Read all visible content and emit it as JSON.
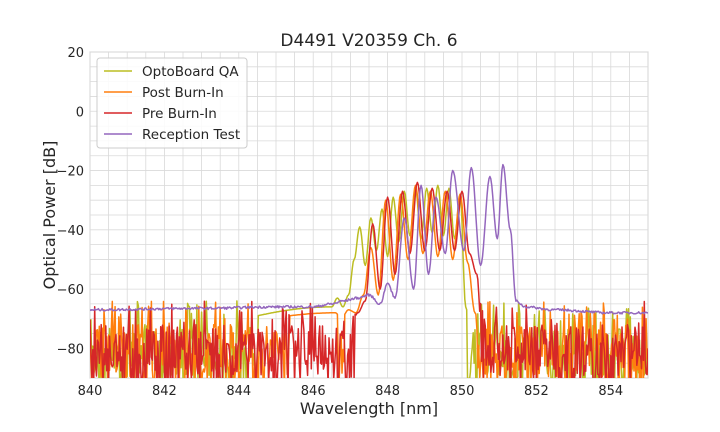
{
  "chart_data": {
    "type": "line",
    "title": "D4491 V20359 Ch. 6",
    "xlabel": "Wavelength [nm]",
    "ylabel": "Optical Power [dB]",
    "xlim": [
      840,
      855
    ],
    "ylim": [
      -90,
      20
    ],
    "xticks": [
      840,
      842,
      844,
      846,
      848,
      850,
      852,
      854
    ],
    "yticks": [
      20,
      0,
      -20,
      -40,
      -60,
      -80
    ],
    "xtick_labels": [
      "840",
      "842",
      "844",
      "846",
      "848",
      "850",
      "852",
      "854"
    ],
    "ytick_labels": [
      "20",
      "0",
      "−20",
      "−40",
      "−60",
      "−80"
    ],
    "grid": true,
    "legend_position": "top-left",
    "series": [
      {
        "name": "OptoBoard QA",
        "color": "#bcbd22",
        "x": [
          840.0,
          846.5,
          846.65,
          846.8,
          846.95,
          847.1,
          847.25,
          847.4,
          847.55,
          847.7,
          847.85,
          848.0,
          848.15,
          848.3,
          848.45,
          848.6,
          848.75,
          848.9,
          849.05,
          849.2,
          849.35,
          849.5,
          849.65,
          849.8,
          849.95,
          850.1,
          850.25,
          850.4,
          855.0
        ],
        "y": [
          -80,
          -66,
          -63,
          -66,
          -62,
          -50,
          -39,
          -52,
          -36,
          -47,
          -33,
          -49,
          -29,
          -44,
          -27,
          -42,
          -26,
          -43,
          -26,
          -41,
          -25,
          -42,
          -26,
          -43,
          -28,
          -66,
          -80,
          -84,
          -80
        ]
      },
      {
        "name": "Post Burn-In",
        "color": "#ff7f0e",
        "x": [
          840.0,
          846.6,
          846.75,
          846.95,
          847.15,
          847.35,
          847.55,
          847.75,
          847.95,
          848.15,
          848.35,
          848.55,
          848.75,
          848.95,
          849.15,
          849.35,
          849.55,
          849.75,
          849.95,
          850.15,
          850.35,
          850.55,
          855.0
        ],
        "y": [
          -80,
          -68,
          -70,
          -67,
          -68,
          -62,
          -46,
          -62,
          -30,
          -57,
          -28,
          -50,
          -25,
          -48,
          -27,
          -49,
          -27,
          -50,
          -28,
          -51,
          -68,
          -80,
          -80
        ]
      },
      {
        "name": "Pre Burn-In",
        "color": "#d62728",
        "x": [
          840.0,
          846.8,
          847.0,
          847.2,
          847.4,
          847.6,
          847.8,
          848.0,
          848.2,
          848.4,
          848.6,
          848.8,
          849.0,
          849.2,
          849.4,
          849.6,
          849.8,
          850.0,
          850.2,
          850.4,
          850.55,
          855.0
        ],
        "y": [
          -80,
          -70,
          -73,
          -68,
          -64,
          -38,
          -60,
          -29,
          -55,
          -27,
          -48,
          -24,
          -47,
          -26,
          -47,
          -27,
          -47,
          -27,
          -48,
          -55,
          -80,
          -80
        ]
      },
      {
        "name": "Reception Test",
        "color": "#9467bd",
        "x": [
          840.0,
          843.0,
          845.0,
          846.0,
          846.5,
          846.8,
          847.2,
          847.5,
          847.8,
          848.0,
          848.2,
          848.45,
          848.7,
          848.9,
          849.1,
          849.3,
          849.55,
          849.75,
          850.05,
          850.25,
          850.5,
          850.75,
          850.95,
          851.1,
          851.3,
          851.45,
          851.7,
          852.5,
          854.0,
          855.0
        ],
        "y": [
          -67,
          -66.5,
          -66,
          -66,
          -65,
          -64,
          -63,
          -62,
          -65,
          -58,
          -63,
          -36,
          -60,
          -25,
          -55,
          -29,
          -48,
          -20,
          -47,
          -19,
          -52,
          -22,
          -43,
          -18,
          -40,
          -64,
          -66,
          -67,
          -68,
          -68
        ]
      }
    ],
    "noise_floor_note": ""
  }
}
